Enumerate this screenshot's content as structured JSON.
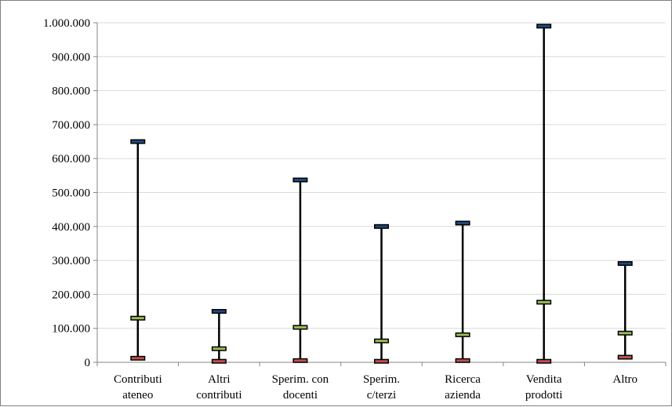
{
  "chart_data": {
    "type": "stock-high-low",
    "title": "",
    "xlabel": "",
    "ylabel": "",
    "ylim": [
      0,
      1000000
    ],
    "yticks": [
      0,
      100000,
      200000,
      300000,
      400000,
      500000,
      600000,
      700000,
      800000,
      900000,
      1000000
    ],
    "ytick_labels": [
      "0",
      "100.000",
      "200.000",
      "300.000",
      "400.000",
      "500.000",
      "600.000",
      "700.000",
      "800.000",
      "900.000",
      "1.000.000"
    ],
    "grid": true,
    "legend": "none",
    "categories": [
      [
        "Contributi",
        "ateneo"
      ],
      [
        "Altri",
        "contributi"
      ],
      [
        "Sperim. con",
        "docenti"
      ],
      [
        "Sperim.",
        "c/terzi"
      ],
      [
        "Ricerca",
        "azienda"
      ],
      [
        "Vendita",
        "prodotti"
      ],
      [
        "Altro"
      ]
    ],
    "series": [
      {
        "values": [
          650000,
          150000,
          537000,
          400000,
          410000,
          990000,
          291000
        ],
        "color": "#1f497d"
      },
      {
        "values": [
          130000,
          40000,
          103000,
          63000,
          81000,
          177000,
          86000
        ],
        "color": "#9bbb59"
      },
      {
        "values": [
          12000,
          3000,
          5000,
          3000,
          5000,
          3000,
          15000
        ],
        "color": "#c0504d"
      }
    ],
    "colors": {
      "whisker": "#000000",
      "grid": "#d9d9d9",
      "axis": "#868686"
    }
  }
}
